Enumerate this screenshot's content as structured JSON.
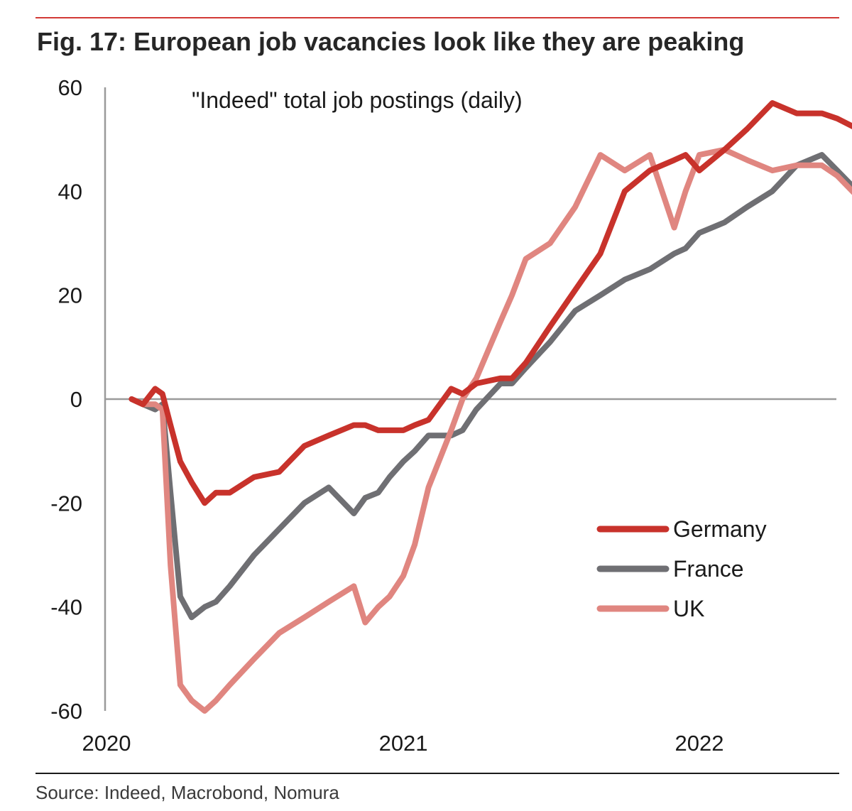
{
  "figure": {
    "title": "Fig. 17: European job vacancies look like they are peaking",
    "source": "Source: Indeed, Macrobond, Nomura"
  },
  "colors": {
    "accent_rule": "#d23a36",
    "germany": "#c8322b",
    "france": "#6f6f73",
    "uk": "#e08680",
    "axis": "#9a9a9a"
  },
  "chart_data": {
    "type": "line",
    "title": "\"Indeed\" total job postings (daily)",
    "xlabel": "",
    "ylabel": "",
    "x_ticks": [
      "2020",
      "2021",
      "2022"
    ],
    "y_ticks": [
      60,
      40,
      20,
      0,
      -20,
      -40,
      -60
    ],
    "ylim": [
      -60,
      60
    ],
    "xlim": [
      "2020-02-01",
      "2022-07-15"
    ],
    "grid": false,
    "legend_position": "lower-right",
    "x": [
      "2020-02-01",
      "2020-02-15",
      "2020-03-01",
      "2020-03-10",
      "2020-03-20",
      "2020-04-01",
      "2020-04-15",
      "2020-05-01",
      "2020-05-15",
      "2020-06-01",
      "2020-07-01",
      "2020-08-01",
      "2020-09-01",
      "2020-10-01",
      "2020-11-01",
      "2020-11-15",
      "2020-12-01",
      "2020-12-15",
      "2021-01-01",
      "2021-01-15",
      "2021-02-01",
      "2021-03-01",
      "2021-03-15",
      "2021-04-01",
      "2021-05-01",
      "2021-05-15",
      "2021-06-01",
      "2021-07-01",
      "2021-08-01",
      "2021-09-01",
      "2021-10-01",
      "2021-11-01",
      "2021-12-01",
      "2021-12-15",
      "2022-01-01",
      "2022-02-01",
      "2022-03-01",
      "2022-04-01",
      "2022-05-01",
      "2022-06-01",
      "2022-06-20",
      "2022-07-15"
    ],
    "series": [
      {
        "name": "Germany",
        "values": [
          0,
          -1,
          2,
          1,
          -5,
          -12,
          -16,
          -20,
          -18,
          -18,
          -15,
          -14,
          -9,
          -7,
          -5,
          -5,
          -6,
          -6,
          -6,
          -5,
          -4,
          2,
          1,
          3,
          4,
          4,
          7,
          14,
          21,
          28,
          40,
          44,
          46,
          47,
          44,
          48,
          52,
          57,
          55,
          55,
          54,
          52
        ]
      },
      {
        "name": "France",
        "values": [
          0,
          -1,
          -2,
          -1,
          -18,
          -38,
          -42,
          -40,
          -39,
          -36,
          -30,
          -25,
          -20,
          -17,
          -22,
          -19,
          -18,
          -15,
          -12,
          -10,
          -7,
          -7,
          -6,
          -2,
          3,
          3,
          6,
          11,
          17,
          20,
          23,
          25,
          28,
          29,
          32,
          34,
          37,
          40,
          45,
          47,
          44,
          40
        ]
      },
      {
        "name": "UK",
        "values": [
          0,
          -1,
          -1,
          -2,
          -32,
          -55,
          -58,
          -60,
          -58,
          -55,
          -50,
          -45,
          -42,
          -39,
          -36,
          -43,
          -40,
          -38,
          -34,
          -28,
          -17,
          -6,
          0,
          4,
          15,
          20,
          27,
          30,
          37,
          47,
          44,
          47,
          33,
          40,
          47,
          48,
          46,
          44,
          45,
          45,
          43,
          39
        ]
      }
    ]
  }
}
